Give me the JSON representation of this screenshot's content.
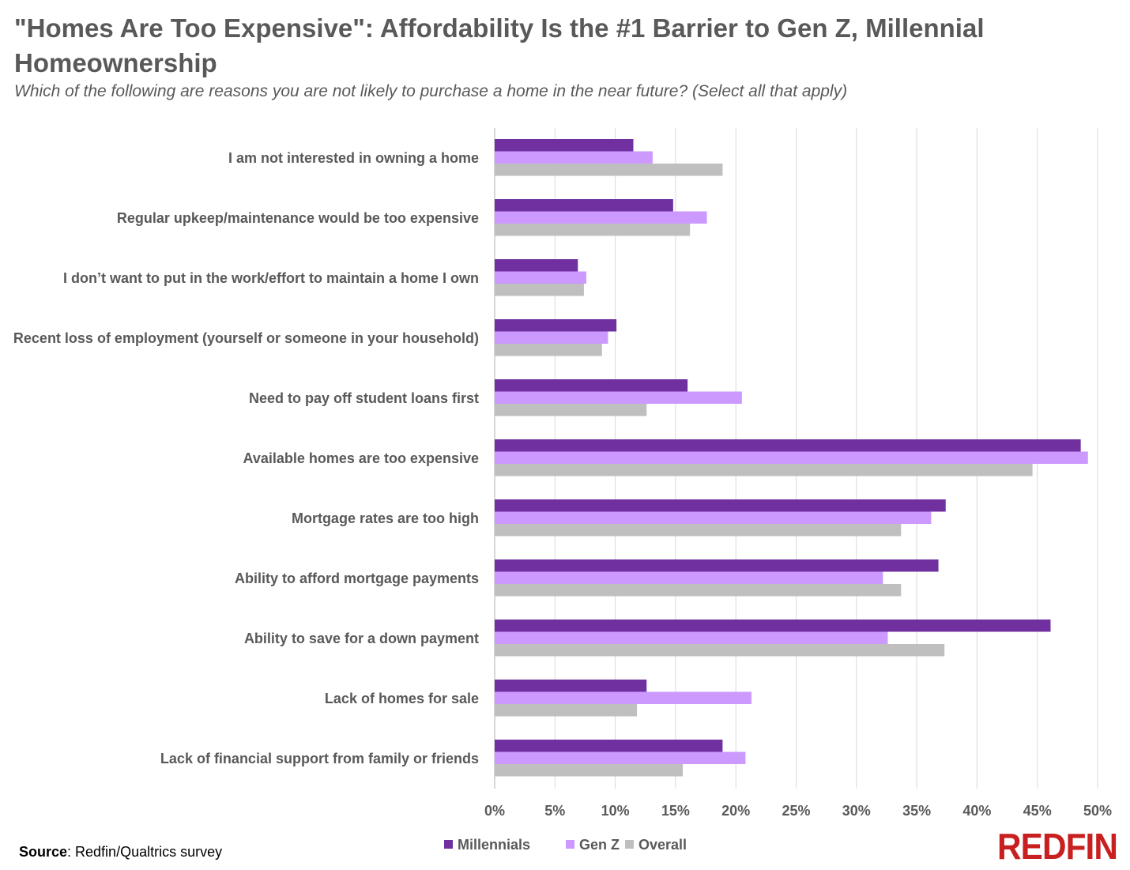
{
  "title": "\"Homes Are Too Expensive\": Affordability Is the #1 Barrier to Gen Z, Millennial Homeownership",
  "subtitle": "Which of the following are reasons you are not likely to purchase a home in the near future? (Select all that apply)",
  "source_label": "Source",
  "source_text": ": Redfin/Qualtrics survey",
  "logo": "REDFIN",
  "colors": {
    "Millennials": "#7030a0",
    "Gen Z": "#cc99ff",
    "Overall": "#bfbfbf"
  },
  "chart_data": {
    "type": "bar",
    "orientation": "horizontal",
    "categories": [
      "I am not interested in owning a home",
      "Regular upkeep/maintenance would be too expensive",
      "I don’t want to put in the work/effort to maintain a home I own",
      "Recent loss of employment (yourself or someone in your household)",
      "Need to pay off student loans first",
      "Available homes are too expensive",
      "Mortgage rates are too high",
      "Ability to afford mortgage payments",
      "Ability to save for a down payment",
      "Lack of homes for sale",
      "Lack of financial support from family or friends"
    ],
    "series": [
      {
        "name": "Millennials",
        "values": [
          11.5,
          14.8,
          6.9,
          10.1,
          16.0,
          48.6,
          37.4,
          36.8,
          46.1,
          12.6,
          18.9
        ]
      },
      {
        "name": "Gen Z",
        "values": [
          13.1,
          17.6,
          7.6,
          9.4,
          20.5,
          49.2,
          36.2,
          32.2,
          32.6,
          21.3,
          20.8
        ]
      },
      {
        "name": "Overall",
        "values": [
          18.9,
          16.2,
          7.4,
          8.9,
          12.6,
          44.6,
          33.7,
          33.7,
          37.3,
          11.8,
          15.6
        ]
      }
    ],
    "xlim": [
      0,
      50
    ],
    "x_ticks": [
      "0%",
      "5%",
      "10%",
      "15%",
      "20%",
      "25%",
      "30%",
      "35%",
      "40%",
      "45%",
      "50%"
    ],
    "grid": true,
    "legend_position": "bottom"
  }
}
